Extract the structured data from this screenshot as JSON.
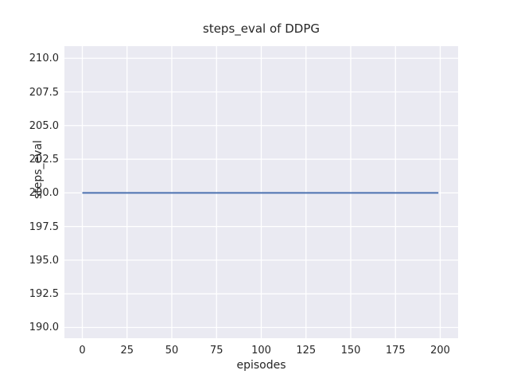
{
  "chart_data": {
    "type": "line",
    "title": "steps_eval of DDPG",
    "xlabel": "episodes",
    "ylabel": "steps_eval",
    "xlim": [
      -10,
      210
    ],
    "ylim": [
      189.2,
      210.9
    ],
    "xticks": [
      0,
      25,
      50,
      75,
      100,
      125,
      150,
      175,
      200
    ],
    "xtick_labels": [
      "0",
      "25",
      "50",
      "75",
      "100",
      "125",
      "150",
      "175",
      "200"
    ],
    "yticks": [
      190.0,
      192.5,
      195.0,
      197.5,
      200.0,
      202.5,
      205.0,
      207.5,
      210.0
    ],
    "ytick_labels": [
      "190.0",
      "192.5",
      "195.0",
      "197.5",
      "200.0",
      "202.5",
      "205.0",
      "207.5",
      "210.0"
    ],
    "grid": true,
    "legend_position": "none",
    "series": [
      {
        "name": "steps_eval",
        "color": "#4C72B0",
        "description": "constant horizontal line at y=200 from episode 0 to episode 199",
        "x": [
          0,
          199
        ],
        "y": [
          200,
          200
        ]
      }
    ],
    "colors": {
      "figure_background": "#FFFFFF",
      "axes_background": "#EAEAF2",
      "grid": "#FFFFFF",
      "text": "#262626",
      "line": "#4C72B0"
    }
  }
}
